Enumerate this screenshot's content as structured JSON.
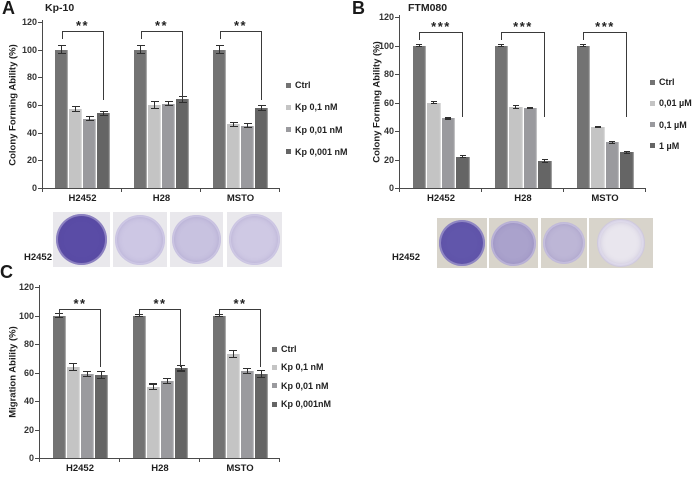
{
  "figure_bg": "#ffffff",
  "text_color": "#262626",
  "series_colors": [
    "#737373",
    "#c4c4c4",
    "#9a9a9e",
    "#656565"
  ],
  "chart_data": [
    {
      "panel_label": "A",
      "type": "bar",
      "title": "Kp-10",
      "xlabel": "",
      "ylabel": "Colony Forming Ability (%)",
      "ylim": [
        0,
        120
      ],
      "yticks": [
        0,
        20,
        40,
        60,
        80,
        100,
        120
      ],
      "grid": false,
      "legend_position": "right",
      "categories": [
        "H2452",
        "H28",
        "MSTO"
      ],
      "series": [
        {
          "name": "Ctrl",
          "color": "#737373",
          "values": [
            100,
            100,
            100
          ],
          "errors": [
            3,
            3,
            3
          ]
        },
        {
          "name": "Kp 0,1 nM",
          "color": "#c4c4c4",
          "values": [
            57,
            60,
            46
          ],
          "errors": [
            2,
            2.5,
            1.5
          ]
        },
        {
          "name": "Kp 0,01 nM",
          "color": "#9a9a9e",
          "values": [
            50,
            61,
            45
          ],
          "errors": [
            1.5,
            1.5,
            1.5
          ]
        },
        {
          "name": "Kp 0,001 nM",
          "color": "#656565",
          "values": [
            54,
            64,
            58
          ],
          "errors": [
            1.5,
            2,
            2
          ]
        }
      ],
      "significance_brackets": [
        {
          "category": "H2452",
          "label": "**"
        },
        {
          "category": "H28",
          "label": "**"
        },
        {
          "category": "MSTO",
          "label": "**"
        }
      ]
    },
    {
      "panel_label": "B",
      "type": "bar",
      "title": "FTM080",
      "xlabel": "",
      "ylabel": "Colony Forming Ability (%)",
      "ylim": [
        0,
        120
      ],
      "yticks": [
        0,
        20,
        40,
        60,
        80,
        100,
        120
      ],
      "grid": false,
      "legend_position": "right",
      "categories": [
        "H2452",
        "H28",
        "MSTO"
      ],
      "series": [
        {
          "name": "Ctrl",
          "color": "#737373",
          "values": [
            100,
            100,
            100
          ],
          "errors": [
            0.7,
            0.7,
            0.7
          ]
        },
        {
          "name": "0,01 µM",
          "color": "#c4c4c4",
          "values": [
            60,
            57,
            43
          ],
          "errors": [
            0.7,
            1.2,
            0.5
          ]
        },
        {
          "name": "0,1 µM",
          "color": "#9a9a9e",
          "values": [
            49,
            56,
            32
          ],
          "errors": [
            0.7,
            0.5,
            0.8
          ]
        },
        {
          "name": "1 µM",
          "color": "#656565",
          "values": [
            22,
            19,
            25
          ],
          "errors": [
            0.8,
            1,
            0.8
          ]
        }
      ],
      "significance_brackets": [
        {
          "category": "H2452",
          "label": "***"
        },
        {
          "category": "H28",
          "label": "***"
        },
        {
          "category": "MSTO",
          "label": "***"
        }
      ]
    },
    {
      "panel_label": "C",
      "type": "bar",
      "title": "",
      "xlabel": "",
      "ylabel": "Migration Ability (%)",
      "ylim": [
        0,
        120
      ],
      "yticks": [
        0,
        20,
        40,
        60,
        80,
        100,
        120
      ],
      "grid": false,
      "legend_position": "right",
      "categories": [
        "H2452",
        "H28",
        "MSTO"
      ],
      "series": [
        {
          "name": "Ctrl",
          "color": "#737373",
          "values": [
            100,
            100,
            100
          ],
          "errors": [
            1.2,
            0.8,
            1
          ]
        },
        {
          "name": "Kp 0,1 nM",
          "color": "#c4c4c4",
          "values": [
            64,
            50,
            73
          ],
          "errors": [
            2.5,
            2,
            2.5
          ]
        },
        {
          "name": "Kp 0,01 nM",
          "color": "#9a9a9e",
          "values": [
            59,
            54,
            61
          ],
          "errors": [
            2,
            2,
            2
          ]
        },
        {
          "name": "Kp 0,001nM",
          "color": "#656565",
          "values": [
            58,
            63,
            59
          ],
          "errors": [
            2.5,
            2,
            2.5
          ]
        }
      ],
      "significance_brackets": [
        {
          "category": "H2452",
          "label": "**"
        },
        {
          "category": "H28",
          "label": "**"
        },
        {
          "category": "MSTO",
          "label": "**"
        }
      ]
    }
  ],
  "colony_assays": [
    {
      "panel": "A",
      "row_label": "H2452",
      "photo_bg": "#e9e8ec",
      "dishes": [
        {
          "name": "dish-1",
          "pattern": "marbled",
          "base": "#5a4ca6"
        },
        {
          "name": "dish-2",
          "pattern": "speckle-faint",
          "base": "#cdc7e4"
        },
        {
          "name": "dish-3",
          "pattern": "speckle-faint",
          "base": "#c8c2e0"
        },
        {
          "name": "dish-4",
          "pattern": "speckle-faint",
          "base": "#cfc9e4"
        }
      ]
    },
    {
      "panel": "B",
      "row_label": "H2452",
      "photo_bg": "#d8d4cb",
      "dishes": [
        {
          "name": "dish-1",
          "pattern": "speckle-dense",
          "base": "#6156ab"
        },
        {
          "name": "dish-2",
          "pattern": "speckle-medium",
          "base": "#aaa2cc"
        },
        {
          "name": "dish-3",
          "pattern": "speckle-soft",
          "base": "#bdb6d6"
        },
        {
          "name": "dish-4",
          "pattern": "faint",
          "base": "#e9e6ee"
        }
      ]
    }
  ]
}
